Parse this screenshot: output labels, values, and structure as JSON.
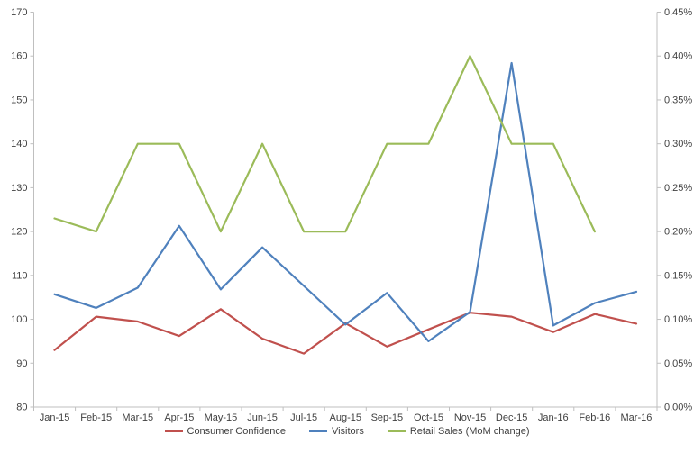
{
  "chart_data": {
    "type": "line",
    "title": "",
    "grid": false,
    "categories": [
      "Jan-15",
      "Feb-15",
      "Mar-15",
      "Apr-15",
      "May-15",
      "Jun-15",
      "Jul-15",
      "Aug-15",
      "Sep-15",
      "Oct-15",
      "Nov-15",
      "Dec-15",
      "Jan-16",
      "Feb-16",
      "Mar-16"
    ],
    "series": [
      {
        "name": "Consumer Confidence",
        "axis": "left",
        "color": "#C0504D",
        "values": [
          93.0,
          100.6,
          99.5,
          96.2,
          102.3,
          95.6,
          92.2,
          99.1,
          93.8,
          97.7,
          101.5,
          100.6,
          97.1,
          101.2,
          99.0
        ]
      },
      {
        "name": "Visitors",
        "axis": "left",
        "color": "#4F81BD",
        "values": [
          105.7,
          102.6,
          107.2,
          121.3,
          106.8,
          116.4,
          107.6,
          98.8,
          106.0,
          95.0,
          101.7,
          158.4,
          98.6,
          103.7,
          106.3
        ]
      },
      {
        "name": "Retail Sales (MoM change)",
        "axis": "right",
        "color": "#9BBB59",
        "values": [
          0.215,
          0.2,
          0.3,
          0.3,
          0.2,
          0.3,
          0.2,
          0.2,
          0.3,
          0.3,
          0.4,
          0.3,
          0.3,
          0.2,
          null
        ]
      }
    ],
    "axes": {
      "left": {
        "min": 80,
        "max": 170,
        "step": 10,
        "tick_labels": [
          "80",
          "90",
          "100",
          "110",
          "120",
          "130",
          "140",
          "150",
          "160",
          "170"
        ]
      },
      "right": {
        "min": 0,
        "max": 0.45,
        "step": 0.05,
        "format": "percent",
        "tick_labels": [
          "0.00%",
          "0.05%",
          "0.10%",
          "0.15%",
          "0.20%",
          "0.25%",
          "0.30%",
          "0.35%",
          "0.40%",
          "0.45%"
        ]
      }
    },
    "legend": {
      "position": "bottom",
      "entries": [
        "Consumer Confidence",
        "Visitors",
        "Retail Sales (MoM change)"
      ]
    }
  },
  "style": {
    "axis_line_color": "#BFBFBF",
    "tick_text_color": "#404040",
    "background": "#FFFFFF",
    "series_stroke_width": 2.2
  }
}
